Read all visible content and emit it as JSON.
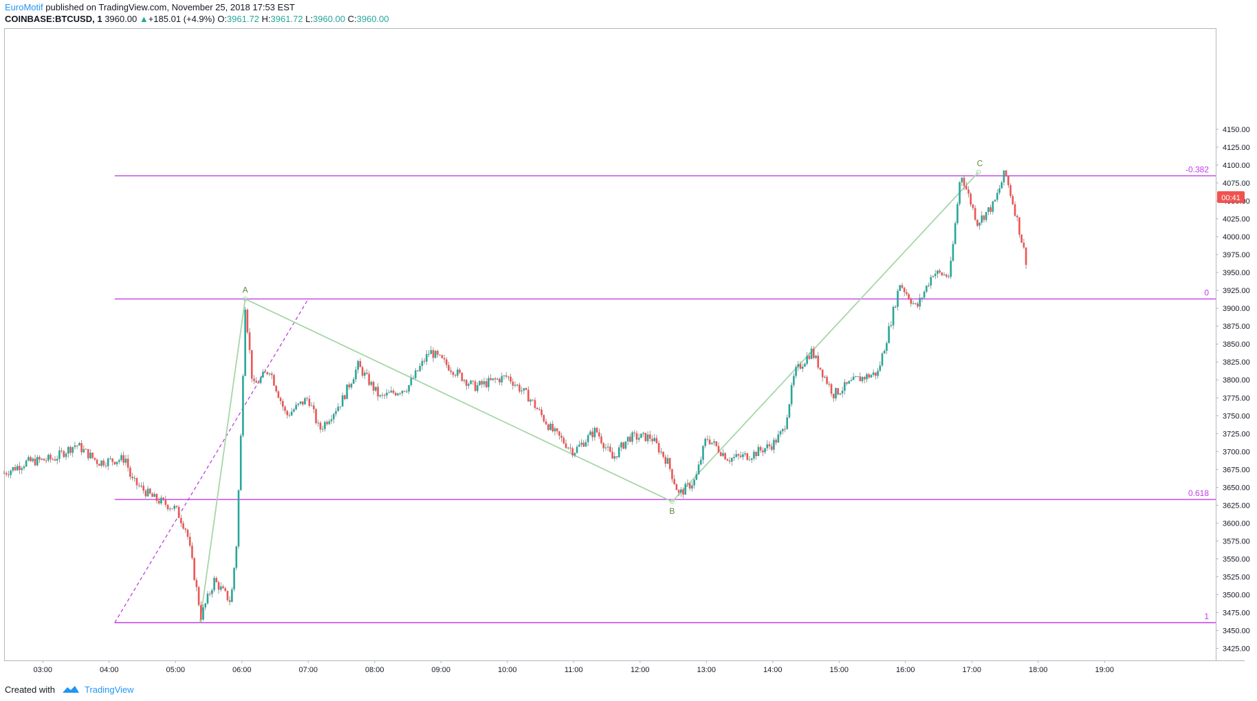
{
  "header": {
    "author": "EuroMotif",
    "published": "published on TradingView.com, November 25, 2018 17:53 EST",
    "symbol": "COINBASE:BTCUSD, 1",
    "last_price": "3960.00",
    "change_arrow": "▲",
    "change": "+185.01 (+4.9%)",
    "o_label": "O:",
    "o_value": "3961.72",
    "h_label": "H:",
    "h_value": "3961.72",
    "l_label": "L:",
    "l_value": "3960.00",
    "c_label": "C:",
    "c_value": "3960.00"
  },
  "footer": {
    "created_with": "Created with",
    "brand": "TradingView"
  },
  "colors": {
    "up": "#26a69a",
    "down": "#ef5350",
    "fib": "#c13ce6",
    "abc": "#a5d6a7",
    "price_tag": "#ef5350"
  },
  "chart_data": {
    "type": "candlestick",
    "symbol": "COINBASE:BTCUSD",
    "interval": "1",
    "x": [
      "03:00",
      "04:00",
      "05:00",
      "06:00",
      "07:00",
      "08:00",
      "09:00",
      "10:00",
      "11:00",
      "12:00",
      "13:00",
      "14:00",
      "15:00",
      "16:00",
      "17:00",
      "18:00",
      "19:00"
    ],
    "y_ticks": [
      3425,
      3450,
      3475,
      3500,
      3525,
      3550,
      3575,
      3600,
      3625,
      3650,
      3675,
      3700,
      3725,
      3750,
      3775,
      3800,
      3825,
      3850,
      3875,
      3900,
      3925,
      3950,
      3975,
      4000,
      4025,
      4050,
      4075,
      4100,
      4125,
      4150
    ],
    "ylim": [
      3412,
      4162
    ],
    "current_price_tag": "00:41",
    "approx_close_path": [
      {
        "t": "02:25",
        "p": 3670
      },
      {
        "t": "02:45",
        "p": 3685
      },
      {
        "t": "03:10",
        "p": 3690
      },
      {
        "t": "03:30",
        "p": 3710
      },
      {
        "t": "03:50",
        "p": 3685
      },
      {
        "t": "04:15",
        "p": 3690
      },
      {
        "t": "04:20",
        "p": 3660
      },
      {
        "t": "04:40",
        "p": 3635
      },
      {
        "t": "05:00",
        "p": 3620
      },
      {
        "t": "05:10",
        "p": 3590
      },
      {
        "t": "05:15",
        "p": 3545
      },
      {
        "t": "05:23",
        "p": 3470
      },
      {
        "t": "05:35",
        "p": 3520
      },
      {
        "t": "05:50",
        "p": 3490
      },
      {
        "t": "05:55",
        "p": 3570
      },
      {
        "t": "05:59",
        "p": 3720
      },
      {
        "t": "06:03",
        "p": 3905
      },
      {
        "t": "06:10",
        "p": 3790
      },
      {
        "t": "06:25",
        "p": 3815
      },
      {
        "t": "06:40",
        "p": 3750
      },
      {
        "t": "07:00",
        "p": 3775
      },
      {
        "t": "07:10",
        "p": 3730
      },
      {
        "t": "07:30",
        "p": 3770
      },
      {
        "t": "07:45",
        "p": 3820
      },
      {
        "t": "08:05",
        "p": 3775
      },
      {
        "t": "08:30",
        "p": 3790
      },
      {
        "t": "08:50",
        "p": 3840
      },
      {
        "t": "09:10",
        "p": 3815
      },
      {
        "t": "09:30",
        "p": 3790
      },
      {
        "t": "10:00",
        "p": 3805
      },
      {
        "t": "10:20",
        "p": 3775
      },
      {
        "t": "10:40",
        "p": 3730
      },
      {
        "t": "11:00",
        "p": 3700
      },
      {
        "t": "11:20",
        "p": 3730
      },
      {
        "t": "11:35",
        "p": 3690
      },
      {
        "t": "11:50",
        "p": 3720
      },
      {
        "t": "12:10",
        "p": 3720
      },
      {
        "t": "12:25",
        "p": 3685
      },
      {
        "t": "12:35",
        "p": 3640
      },
      {
        "t": "12:50",
        "p": 3660
      },
      {
        "t": "13:00",
        "p": 3720
      },
      {
        "t": "13:20",
        "p": 3690
      },
      {
        "t": "13:40",
        "p": 3695
      },
      {
        "t": "14:00",
        "p": 3710
      },
      {
        "t": "14:10",
        "p": 3730
      },
      {
        "t": "14:20",
        "p": 3810
      },
      {
        "t": "14:35",
        "p": 3840
      },
      {
        "t": "14:55",
        "p": 3780
      },
      {
        "t": "15:15",
        "p": 3800
      },
      {
        "t": "15:35",
        "p": 3810
      },
      {
        "t": "15:45",
        "p": 3870
      },
      {
        "t": "15:55",
        "p": 3935
      },
      {
        "t": "16:10",
        "p": 3900
      },
      {
        "t": "16:25",
        "p": 3950
      },
      {
        "t": "16:40",
        "p": 3945
      },
      {
        "t": "16:50",
        "p": 4090
      },
      {
        "t": "17:05",
        "p": 4020
      },
      {
        "t": "17:20",
        "p": 4045
      },
      {
        "t": "17:30",
        "p": 4090
      },
      {
        "t": "17:40",
        "p": 4030
      },
      {
        "t": "17:50",
        "p": 3960
      }
    ],
    "fib_levels": [
      {
        "label": "-0.382",
        "price": 4085
      },
      {
        "label": "0",
        "price": 3913
      },
      {
        "label": "0.618",
        "price": 3633
      },
      {
        "label": "1",
        "price": 3461
      }
    ],
    "abc_points": [
      {
        "label": "A",
        "t": "06:03",
        "p": 3913
      },
      {
        "label": "B",
        "t": "12:29",
        "p": 3630
      },
      {
        "label": "C",
        "t": "17:06",
        "p": 4090
      }
    ]
  }
}
